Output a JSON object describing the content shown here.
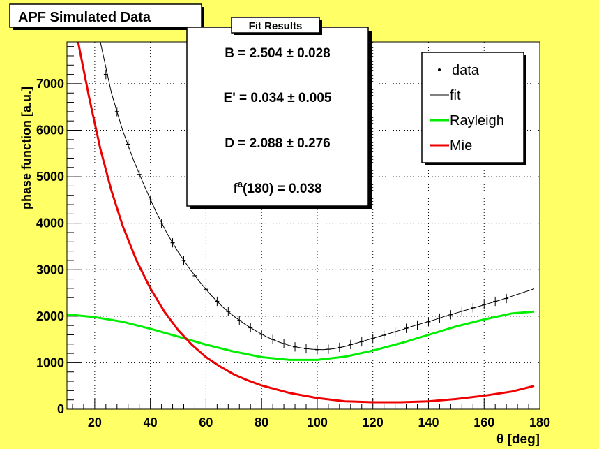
{
  "title": "APF Simulated Data",
  "fit_box": {
    "header": "Fit Results",
    "lines": [
      "B = 2.504 ± 0.028",
      "E' = 0.034 ± 0.005",
      "D = 2.088 ± 0.276",
      "f^a(180) = 0.038"
    ],
    "last_line_parts": {
      "f": "f",
      "sup": "a",
      "rest": "(180) = 0.038"
    }
  },
  "legend": {
    "entries": [
      {
        "label": "data",
        "style": "marker",
        "color": "#000000"
      },
      {
        "label": "fit",
        "style": "line",
        "color": "#000000"
      },
      {
        "label": "Rayleigh",
        "style": "thickline",
        "color": "#00ee00"
      },
      {
        "label": "Mie",
        "style": "thickline",
        "color": "#ee0000"
      }
    ]
  },
  "colors": {
    "frame_background": "#ffff66",
    "plot_background": "#ffffff",
    "data": "#000000",
    "fit": "#000000",
    "rayleigh": "#00ee00",
    "mie": "#ee0000"
  },
  "chart_data": {
    "type": "line",
    "title": "APF Simulated Data",
    "xlabel": "θ [deg]",
    "ylabel": "phase function [a.u.]",
    "xlim": [
      10,
      180
    ],
    "ylim": [
      0,
      7900
    ],
    "xticks": [
      20,
      40,
      60,
      80,
      100,
      120,
      140,
      160,
      180
    ],
    "yticks": [
      0,
      1000,
      2000,
      3000,
      4000,
      5000,
      6000,
      7000
    ],
    "xtick_labels": [
      "20",
      "40",
      "60",
      "80",
      "100",
      "120",
      "140",
      "160",
      "180"
    ],
    "ytick_labels": [
      "0",
      "1000",
      "2000",
      "3000",
      "4000",
      "5000",
      "6000",
      "7000"
    ],
    "grid": true,
    "legend_position": "top-right",
    "series": [
      {
        "name": "data",
        "kind": "points",
        "x": [
          24,
          28,
          32,
          36,
          40,
          44,
          48,
          52,
          56,
          60,
          64,
          68,
          72,
          76,
          80,
          84,
          88,
          92,
          96,
          100,
          104,
          108,
          112,
          116,
          120,
          124,
          128,
          132,
          136,
          140,
          144,
          148,
          152,
          156,
          160,
          164,
          168
        ],
        "y": [
          7200,
          6400,
          5700,
          5050,
          4500,
          4000,
          3580,
          3200,
          2870,
          2580,
          2320,
          2100,
          1910,
          1750,
          1610,
          1500,
          1410,
          1340,
          1300,
          1280,
          1290,
          1330,
          1390,
          1450,
          1520,
          1590,
          1660,
          1740,
          1810,
          1880,
          1960,
          2030,
          2110,
          2180,
          2250,
          2320,
          2380
        ],
        "yerr": 100
      },
      {
        "name": "fit",
        "kind": "line",
        "x": [
          22,
          26,
          30,
          34,
          38,
          42,
          46,
          50,
          54,
          58,
          62,
          66,
          70,
          74,
          78,
          82,
          86,
          90,
          94,
          98,
          102,
          106,
          110,
          114,
          118,
          122,
          126,
          130,
          134,
          138,
          142,
          146,
          150,
          154,
          158,
          162,
          166,
          170,
          174,
          178
        ],
        "y": [
          7900,
          6800,
          6000,
          5350,
          4780,
          4250,
          3780,
          3380,
          3030,
          2720,
          2440,
          2200,
          2000,
          1830,
          1680,
          1550,
          1450,
          1370,
          1320,
          1290,
          1280,
          1300,
          1350,
          1420,
          1490,
          1560,
          1630,
          1700,
          1780,
          1850,
          1920,
          2000,
          2070,
          2140,
          2210,
          2280,
          2350,
          2430,
          2510,
          2590
        ]
      },
      {
        "name": "Rayleigh",
        "kind": "line",
        "x": [
          10,
          20,
          30,
          40,
          50,
          60,
          70,
          80,
          90,
          100,
          110,
          120,
          130,
          140,
          150,
          160,
          170,
          178
        ],
        "y": [
          2040,
          1980,
          1880,
          1730,
          1560,
          1390,
          1240,
          1120,
          1060,
          1060,
          1130,
          1260,
          1420,
          1600,
          1780,
          1930,
          2060,
          2100
        ]
      },
      {
        "name": "Mie",
        "kind": "line",
        "x": [
          14,
          18,
          22,
          26,
          30,
          35,
          40,
          45,
          50,
          55,
          60,
          65,
          70,
          75,
          80,
          90,
          100,
          110,
          120,
          130,
          140,
          150,
          160,
          170,
          178
        ],
        "y": [
          7900,
          6700,
          5600,
          4700,
          3950,
          3200,
          2600,
          2100,
          1700,
          1380,
          1120,
          920,
          750,
          620,
          510,
          350,
          240,
          170,
          150,
          150,
          170,
          220,
          290,
          380,
          500
        ]
      }
    ]
  }
}
